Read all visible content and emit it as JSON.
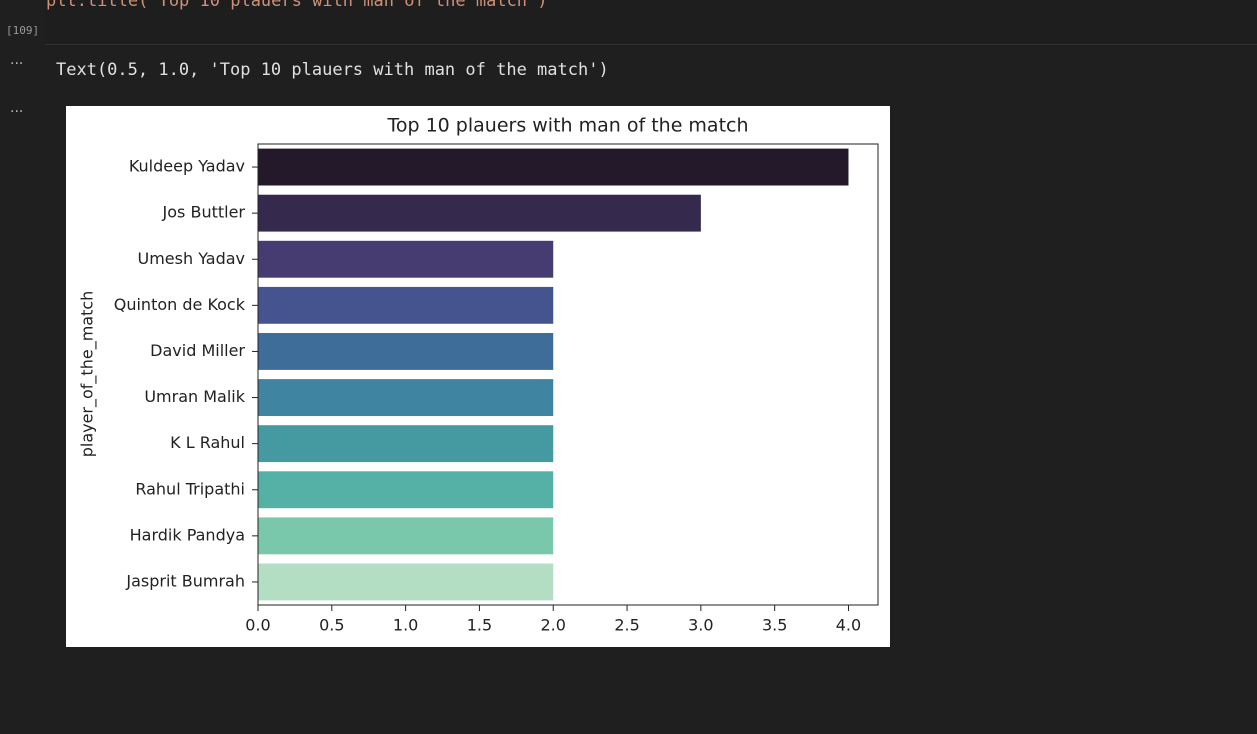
{
  "cell": {
    "code": "plt.title('Top 10 plauers with man of the match')",
    "execution_count": "[109]",
    "output_text": "Text(0.5, 1.0, 'Top 10 plauers with man of the match')"
  },
  "chart_data": {
    "type": "barh",
    "title": "Top 10 plauers with man of the match",
    "ylabel": "player_of_the_match",
    "categories": [
      "Kuldeep Yadav",
      "Jos Buttler",
      "Umesh Yadav",
      "Quinton de Kock",
      "David Miller",
      "Umran Malik",
      "K L Rahul",
      "Rahul Tripathi",
      "Hardik Pandya",
      "Jasprit Bumrah"
    ],
    "values": [
      4,
      3,
      2,
      2,
      2,
      2,
      2,
      2,
      2,
      2
    ],
    "colors": [
      "#24182b",
      "#352a4e",
      "#463c71",
      "#45548e",
      "#3e6d99",
      "#3f84a0",
      "#4599a0",
      "#55b0a6",
      "#7ac8ab",
      "#b4dec4"
    ],
    "xlim": [
      0,
      4.2
    ],
    "xticks": [
      {
        "value": 0,
        "label": "0.0"
      },
      0.5,
      {
        "value": 1,
        "label": "1.0"
      },
      1.5,
      {
        "value": 2,
        "label": "2.0"
      },
      2.5,
      {
        "value": 3,
        "label": "3.0"
      },
      3.5,
      {
        "value": 4,
        "label": "4.0"
      }
    ],
    "grid": false
  }
}
